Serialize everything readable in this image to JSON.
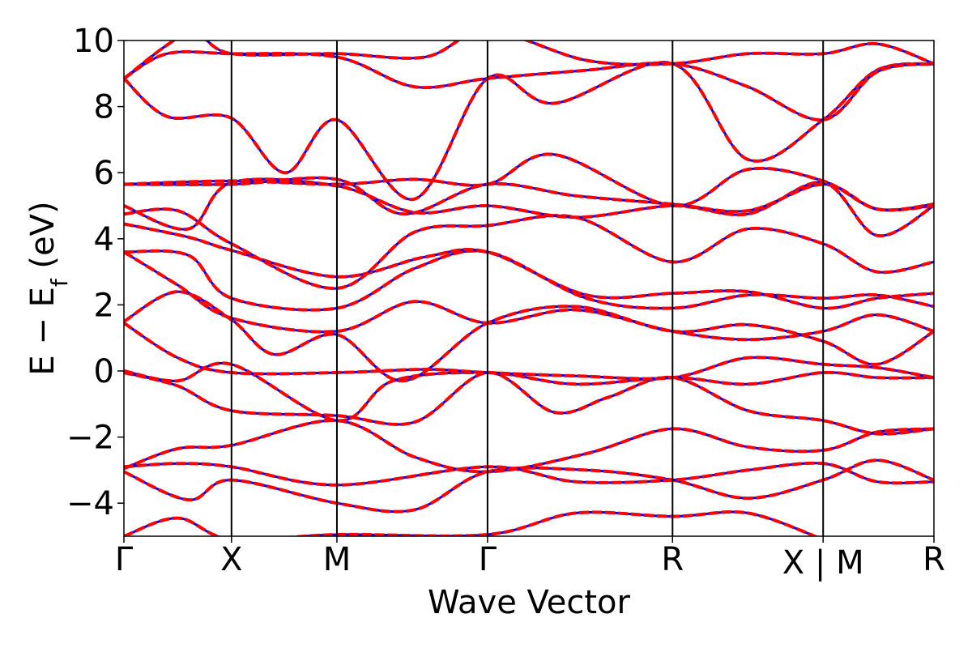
{
  "chart_data": {
    "type": "line",
    "xlabel": "Wave Vector",
    "ylabel_main": "E − E",
    "ylabel_sub": "f",
    "ylabel_unit": " (eV)",
    "ylim": [
      -5,
      10
    ],
    "yticks": [
      -4,
      -2,
      0,
      2,
      4,
      6,
      8,
      10
    ],
    "ytick_labels": [
      "−4",
      "−2",
      "0",
      "2",
      "4",
      "6",
      "8",
      "10"
    ],
    "xlim": [
      0,
      7.53
    ],
    "kpoints": [
      {
        "label": "Γ",
        "x": 0
      },
      {
        "label": "X",
        "x": 1.0
      },
      {
        "label": "M",
        "x": 1.98
      },
      {
        "label": "Γ",
        "x": 3.38
      },
      {
        "label": "R",
        "x": 5.1
      },
      {
        "label": "X | M",
        "x": 6.5
      },
      {
        "label": "R",
        "x": 7.53
      }
    ],
    "grid": false,
    "legend": "none",
    "series_styles": [
      {
        "style": "solid",
        "color": "#0000ff"
      },
      {
        "style": "dashed",
        "color": "#ff0000"
      }
    ],
    "bands": [
      [
        [
          0,
          -5.0
        ],
        [
          0.5,
          -4.45
        ],
        [
          1.0,
          -5.1
        ],
        [
          1.98,
          -4.95
        ],
        [
          3.38,
          -4.95
        ],
        [
          4.2,
          -4.3
        ],
        [
          5.1,
          -4.4
        ],
        [
          5.8,
          -4.3
        ],
        [
          6.5,
          -5.1
        ]
      ],
      [
        [
          0,
          -3.05
        ],
        [
          0.6,
          -3.9
        ],
        [
          1.0,
          -3.3
        ],
        [
          1.98,
          -4.0
        ],
        [
          2.7,
          -4.2
        ],
        [
          3.38,
          -3.05
        ],
        [
          4.3,
          -3.0
        ],
        [
          5.1,
          -3.3
        ],
        [
          5.8,
          -3.85
        ],
        [
          6.5,
          -3.3
        ],
        [
          7.0,
          -2.7
        ],
        [
          7.53,
          -3.3
        ]
      ],
      [
        [
          0,
          -2.9
        ],
        [
          0.5,
          -2.8
        ],
        [
          1.0,
          -2.9
        ],
        [
          1.98,
          -3.45
        ],
        [
          3.38,
          -2.9
        ],
        [
          4.2,
          -3.35
        ],
        [
          5.1,
          -3.3
        ],
        [
          5.8,
          -3.0
        ],
        [
          6.5,
          -2.8
        ],
        [
          7.0,
          -3.35
        ],
        [
          7.53,
          -3.35
        ]
      ],
      [
        [
          0,
          -2.95
        ],
        [
          0.5,
          -2.35
        ],
        [
          1.0,
          -2.25
        ],
        [
          1.98,
          -1.5
        ],
        [
          2.7,
          -2.6
        ],
        [
          3.38,
          -3.05
        ],
        [
          4.3,
          -2.5
        ],
        [
          5.1,
          -1.75
        ],
        [
          5.8,
          -2.3
        ],
        [
          6.5,
          -2.4
        ],
        [
          7.0,
          -1.85
        ],
        [
          7.53,
          -1.75
        ]
      ],
      [
        [
          0,
          -0.05
        ],
        [
          0.5,
          -0.45
        ],
        [
          1.0,
          -1.2
        ],
        [
          1.98,
          -1.35
        ],
        [
          2.7,
          -1.55
        ],
        [
          3.38,
          -0.05
        ],
        [
          4.0,
          -1.25
        ],
        [
          4.5,
          -0.8
        ],
        [
          5.1,
          -0.2
        ],
        [
          5.8,
          -1.2
        ],
        [
          6.5,
          -1.5
        ],
        [
          7.0,
          -1.9
        ],
        [
          7.53,
          -1.75
        ]
      ],
      [
        [
          0,
          0.0
        ],
        [
          0.5,
          -0.3
        ],
        [
          1.0,
          0.2
        ],
        [
          1.98,
          -1.5
        ],
        [
          2.5,
          -0.3
        ],
        [
          3.38,
          -0.05
        ],
        [
          4.2,
          -0.4
        ],
        [
          5.1,
          -0.2
        ],
        [
          5.8,
          -0.4
        ],
        [
          6.5,
          -0.05
        ],
        [
          7.0,
          -0.2
        ],
        [
          7.53,
          -0.2
        ]
      ],
      [
        [
          0,
          1.45
        ],
        [
          0.5,
          0.4
        ],
        [
          1.0,
          -0.05
        ],
        [
          1.98,
          -0.05
        ],
        [
          2.8,
          0.05
        ],
        [
          3.38,
          -0.05
        ],
        [
          4.2,
          -0.15
        ],
        [
          5.1,
          -0.2
        ],
        [
          5.8,
          0.4
        ],
        [
          6.5,
          0.2
        ],
        [
          7.0,
          0.1
        ],
        [
          7.53,
          -0.2
        ]
      ],
      [
        [
          0,
          1.5
        ],
        [
          0.5,
          2.4
        ],
        [
          1.0,
          1.55
        ],
        [
          1.4,
          0.5
        ],
        [
          1.98,
          1.1
        ],
        [
          2.6,
          -0.3
        ],
        [
          3.38,
          1.45
        ],
        [
          4.2,
          1.95
        ],
        [
          5.1,
          1.2
        ],
        [
          5.8,
          1.4
        ],
        [
          6.5,
          0.9
        ],
        [
          7.0,
          0.2
        ],
        [
          7.53,
          1.2
        ]
      ],
      [
        [
          0,
          3.6
        ],
        [
          0.5,
          2.6
        ],
        [
          1.0,
          1.6
        ],
        [
          1.98,
          1.2
        ],
        [
          2.7,
          2.1
        ],
        [
          3.38,
          1.45
        ],
        [
          4.2,
          1.85
        ],
        [
          5.1,
          1.2
        ],
        [
          5.8,
          0.95
        ],
        [
          6.5,
          1.2
        ],
        [
          7.0,
          1.7
        ],
        [
          7.53,
          1.2
        ]
      ],
      [
        [
          0,
          3.6
        ],
        [
          0.6,
          3.5
        ],
        [
          1.0,
          2.2
        ],
        [
          1.98,
          1.9
        ],
        [
          2.7,
          3.1
        ],
        [
          3.38,
          3.6
        ],
        [
          4.3,
          2.2
        ],
        [
          5.1,
          1.9
        ],
        [
          5.8,
          2.3
        ],
        [
          6.5,
          2.2
        ],
        [
          7.0,
          2.3
        ],
        [
          7.53,
          1.95
        ]
      ],
      [
        [
          0,
          4.45
        ],
        [
          0.6,
          4.05
        ],
        [
          1.0,
          3.65
        ],
        [
          1.98,
          2.85
        ],
        [
          2.8,
          3.45
        ],
        [
          3.38,
          3.6
        ],
        [
          4.3,
          2.3
        ],
        [
          5.1,
          2.35
        ],
        [
          5.8,
          2.4
        ],
        [
          6.5,
          1.9
        ],
        [
          7.0,
          2.2
        ],
        [
          7.53,
          2.35
        ]
      ],
      [
        [
          0,
          4.75
        ],
        [
          0.5,
          4.85
        ],
        [
          1.0,
          3.85
        ],
        [
          1.98,
          2.5
        ],
        [
          2.7,
          4.2
        ],
        [
          3.38,
          4.4
        ],
        [
          4.2,
          4.65
        ],
        [
          5.1,
          3.3
        ],
        [
          5.8,
          4.3
        ],
        [
          6.5,
          3.85
        ],
        [
          7.0,
          3.0
        ],
        [
          7.53,
          3.3
        ]
      ],
      [
        [
          0,
          5.0
        ],
        [
          0.6,
          4.3
        ],
        [
          1.0,
          5.7
        ],
        [
          1.98,
          5.6
        ],
        [
          2.7,
          4.8
        ],
        [
          3.38,
          5.0
        ],
        [
          4.2,
          4.65
        ],
        [
          5.1,
          5.0
        ],
        [
          5.8,
          4.75
        ],
        [
          6.5,
          5.7
        ],
        [
          7.0,
          4.1
        ],
        [
          7.53,
          5.0
        ]
      ],
      [
        [
          0,
          5.65
        ],
        [
          1.0,
          5.65
        ],
        [
          1.98,
          5.8
        ],
        [
          2.6,
          4.75
        ],
        [
          3.38,
          5.65
        ],
        [
          4.2,
          5.3
        ],
        [
          5.1,
          5.05
        ],
        [
          5.8,
          4.85
        ],
        [
          6.5,
          5.65
        ],
        [
          7.0,
          4.9
        ],
        [
          7.53,
          5.0
        ]
      ],
      [
        [
          0,
          5.65
        ],
        [
          1.0,
          5.75
        ],
        [
          1.98,
          5.65
        ],
        [
          2.7,
          5.8
        ],
        [
          3.38,
          5.65
        ],
        [
          4.0,
          6.55
        ],
        [
          5.1,
          5.0
        ],
        [
          5.8,
          6.1
        ],
        [
          6.5,
          5.75
        ],
        [
          7.0,
          4.9
        ],
        [
          7.53,
          5.05
        ]
      ],
      [
        [
          0,
          8.85
        ],
        [
          0.4,
          7.7
        ],
        [
          1.0,
          7.65
        ],
        [
          1.5,
          6.0
        ],
        [
          1.98,
          7.6
        ],
        [
          2.7,
          5.2
        ],
        [
          3.38,
          8.85
        ],
        [
          4.0,
          8.1
        ],
        [
          5.1,
          9.3
        ],
        [
          5.8,
          6.4
        ],
        [
          6.5,
          7.6
        ],
        [
          7.0,
          9.1
        ],
        [
          7.53,
          9.3
        ]
      ],
      [
        [
          0,
          8.85
        ],
        [
          0.4,
          9.6
        ],
        [
          1.0,
          9.6
        ],
        [
          1.98,
          9.5
        ],
        [
          2.7,
          8.6
        ],
        [
          3.38,
          8.85
        ],
        [
          4.3,
          9.1
        ],
        [
          5.1,
          9.3
        ],
        [
          5.8,
          8.6
        ],
        [
          6.5,
          7.6
        ],
        [
          7.0,
          9.05
        ],
        [
          7.53,
          9.3
        ]
      ],
      [
        [
          0,
          8.85
        ],
        [
          0.6,
          10.2
        ],
        [
          1.0,
          9.6
        ],
        [
          1.98,
          9.6
        ],
        [
          2.8,
          9.5
        ],
        [
          3.38,
          10.3
        ],
        [
          4.3,
          9.4
        ],
        [
          5.1,
          9.3
        ],
        [
          5.8,
          9.6
        ],
        [
          6.5,
          9.6
        ],
        [
          7.0,
          9.9
        ],
        [
          7.53,
          9.3
        ]
      ]
    ]
  }
}
